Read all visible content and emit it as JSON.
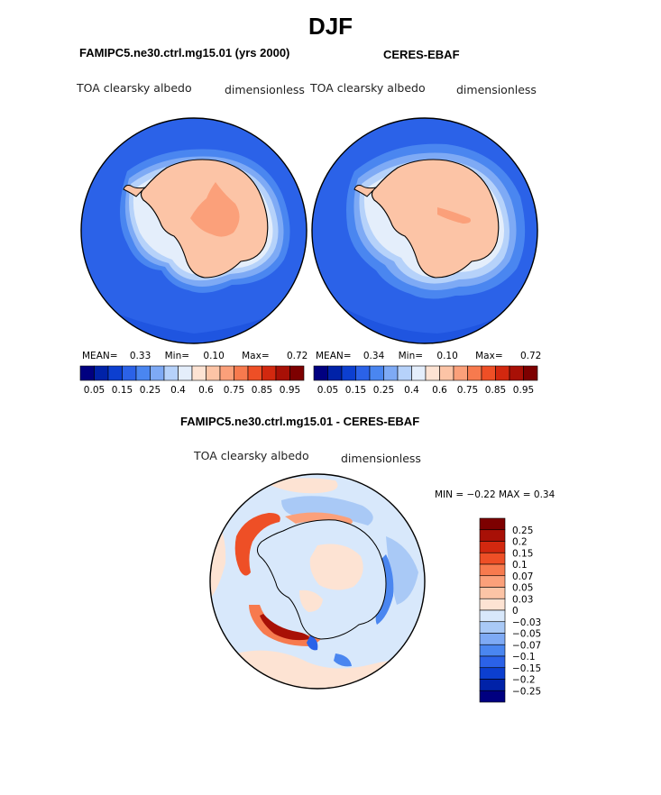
{
  "figure": {
    "title": "DJF"
  },
  "panels": [
    {
      "title": "FAMIPC5.ne30.ctrl.mg15.01 (yrs 2000)",
      "variable": "TOA clearsky albedo",
      "units": "dimensionless",
      "stats": {
        "mean_label": "MEAN=",
        "mean": "0.33",
        "min_label": "Min=",
        "min": "0.10",
        "max_label": "Max=",
        "max": "0.72"
      }
    },
    {
      "title": "CERES-EBAF",
      "variable": "TOA clearsky albedo",
      "units": "dimensionless",
      "stats": {
        "mean_label": "MEAN=",
        "mean": "0.34",
        "min_label": "Min=",
        "min": "0.10",
        "max_label": "Max=",
        "max": "0.72"
      }
    },
    {
      "title": "FAMIPC5.ne30.ctrl.mg15.01 - CERES-EBAF",
      "variable": "TOA clearsky albedo",
      "units": "dimensionless",
      "stats": {
        "text": "MIN =  −0.22 MAX =    0.34"
      }
    }
  ],
  "chart_data": [
    {
      "type": "heatmap",
      "projection": "south polar stereographic",
      "region": "Antarctica",
      "title": "FAMIPC5.ne30.ctrl.mg15.01 (yrs 2000)",
      "variable": "TOA clearsky albedo",
      "units": "dimensionless",
      "mean": 0.33,
      "min": 0.1,
      "max": 0.72,
      "colorbar": {
        "orientation": "horizontal",
        "levels": [
          0.05,
          0.1,
          0.15,
          0.2,
          0.25,
          0.3,
          0.4,
          0.5,
          0.6,
          0.7,
          0.75,
          0.8,
          0.85,
          0.9,
          0.95
        ],
        "tick_labels": [
          "0.05",
          "0.15",
          "0.25",
          "0.4",
          "0.6",
          "0.75",
          "0.85",
          "0.95"
        ],
        "colors": [
          "#000080",
          "#0022a8",
          "#0c3fd0",
          "#2b62e8",
          "#4a86f0",
          "#7eaaf5",
          "#b6d2fa",
          "#e4eefb",
          "#fde3d3",
          "#fcc4a6",
          "#fba07a",
          "#f77a4e",
          "#ee4f26",
          "#d2280f",
          "#a81006",
          "#7d0000"
        ]
      }
    },
    {
      "type": "heatmap",
      "projection": "south polar stereographic",
      "region": "Antarctica",
      "title": "CERES-EBAF",
      "variable": "TOA clearsky albedo",
      "units": "dimensionless",
      "mean": 0.34,
      "min": 0.1,
      "max": 0.72,
      "colorbar": {
        "orientation": "horizontal",
        "levels": [
          0.05,
          0.1,
          0.15,
          0.2,
          0.25,
          0.3,
          0.4,
          0.5,
          0.6,
          0.7,
          0.75,
          0.8,
          0.85,
          0.9,
          0.95
        ],
        "tick_labels": [
          "0.05",
          "0.15",
          "0.25",
          "0.4",
          "0.6",
          "0.75",
          "0.85",
          "0.95"
        ],
        "colors": [
          "#000080",
          "#0022a8",
          "#0c3fd0",
          "#2b62e8",
          "#4a86f0",
          "#7eaaf5",
          "#b6d2fa",
          "#e4eefb",
          "#fde3d3",
          "#fcc4a6",
          "#fba07a",
          "#f77a4e",
          "#ee4f26",
          "#d2280f",
          "#a81006",
          "#7d0000"
        ]
      }
    },
    {
      "type": "heatmap",
      "projection": "south polar stereographic",
      "region": "Antarctica",
      "title": "FAMIPC5.ne30.ctrl.mg15.01 - CERES-EBAF",
      "variable": "TOA clearsky albedo",
      "units": "dimensionless",
      "min": -0.22,
      "max": 0.34,
      "colorbar": {
        "orientation": "vertical",
        "levels": [
          0.25,
          0.2,
          0.15,
          0.1,
          0.07,
          0.05,
          0.03,
          0,
          -0.03,
          -0.05,
          -0.07,
          -0.1,
          -0.15,
          -0.2,
          -0.25
        ],
        "tick_labels": [
          "0.25",
          "0.2",
          "0.15",
          "0.1",
          "0.07",
          "0.05",
          "0.03",
          "0",
          "−0.03",
          "−0.05",
          "−0.07",
          "−0.1",
          "−0.15",
          "−0.2",
          "−0.25"
        ],
        "colors": [
          "#7d0000",
          "#a81006",
          "#d2280f",
          "#ee4f26",
          "#f77a4e",
          "#fba07a",
          "#fcc4a6",
          "#fde3d3",
          "#d8e8fb",
          "#a9c9f6",
          "#7eaaf5",
          "#4a86f0",
          "#2b62e8",
          "#0c3fd0",
          "#0022a8",
          "#000080"
        ]
      }
    }
  ]
}
